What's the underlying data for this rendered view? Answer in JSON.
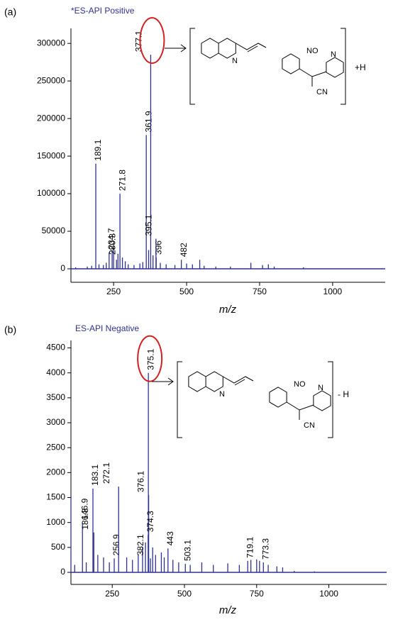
{
  "chart_data": [
    {
      "type": "stem",
      "panel_label": "(a)",
      "title": "*ES-API Positive",
      "x_label": "m/z",
      "annotation": "+H",
      "structure_labels": [
        "N",
        "NO",
        "N",
        "CN"
      ],
      "x": [
        189.1,
        234.7,
        271.8,
        280.3,
        361.9,
        377.1,
        396.0,
        395.1,
        482.0
      ],
      "values": [
        140000,
        22000,
        100000,
        15000,
        178000,
        285000,
        15000,
        40000,
        12000
      ],
      "minor_x": [
        120,
        160,
        175,
        200,
        215,
        225,
        245,
        250,
        260,
        265,
        290,
        300,
        320,
        340,
        350,
        370,
        385,
        410,
        430,
        460,
        500,
        520,
        545,
        560,
        600,
        650,
        720,
        760,
        780,
        800,
        900
      ],
      "minor_values": [
        2000,
        3000,
        4000,
        6000,
        5000,
        8000,
        25000,
        28000,
        12000,
        20000,
        10000,
        6000,
        5000,
        7000,
        9000,
        25000,
        18000,
        8000,
        6000,
        5000,
        7000,
        6000,
        12000,
        4000,
        3000,
        3000,
        8000,
        5000,
        6000,
        3000,
        2000
      ],
      "color": "#2e3192",
      "xlim": [
        104,
        1180
      ],
      "ylim": [
        0,
        320000
      ],
      "xticks": [
        250,
        500,
        750,
        1000
      ],
      "yticks": [
        0,
        50000,
        100000,
        150000,
        200000,
        250000,
        300000
      ]
    },
    {
      "type": "stem",
      "panel_label": "(b)",
      "title": "ES-API Negative",
      "x_label": "m/z",
      "annotation": "- H",
      "structure_labels": [
        "N",
        "NO",
        "N",
        "CN"
      ],
      "x": [
        146.9,
        183.1,
        186.3,
        256.9,
        272.1,
        375.1,
        376.1,
        374.3,
        382.1,
        443.0,
        503.1,
        719.1,
        773.3
      ],
      "values": [
        1000,
        1680,
        800,
        280,
        1720,
        4000,
        1550,
        750,
        280,
        480,
        170,
        230,
        200
      ],
      "minor_x": [
        107,
        120,
        160,
        200,
        220,
        240,
        300,
        320,
        340,
        355,
        365,
        390,
        400,
        420,
        430,
        460,
        480,
        520,
        560,
        600,
        650,
        690,
        730,
        750,
        760,
        790,
        820,
        840,
        880,
        950
      ],
      "minor_values": [
        1500,
        150,
        200,
        350,
        300,
        200,
        300,
        250,
        350,
        500,
        600,
        500,
        350,
        400,
        300,
        250,
        200,
        150,
        200,
        150,
        180,
        150,
        250,
        260,
        230,
        150,
        120,
        100,
        30,
        20
      ],
      "color": "#2e3192",
      "xlim": [
        107,
        1200
      ],
      "ylim": [
        0,
        4650
      ],
      "xticks": [
        250,
        500,
        750,
        1000
      ],
      "yticks": [
        0,
        500,
        1000,
        1500,
        2000,
        2500,
        3000,
        3500,
        4000,
        4500
      ]
    }
  ]
}
